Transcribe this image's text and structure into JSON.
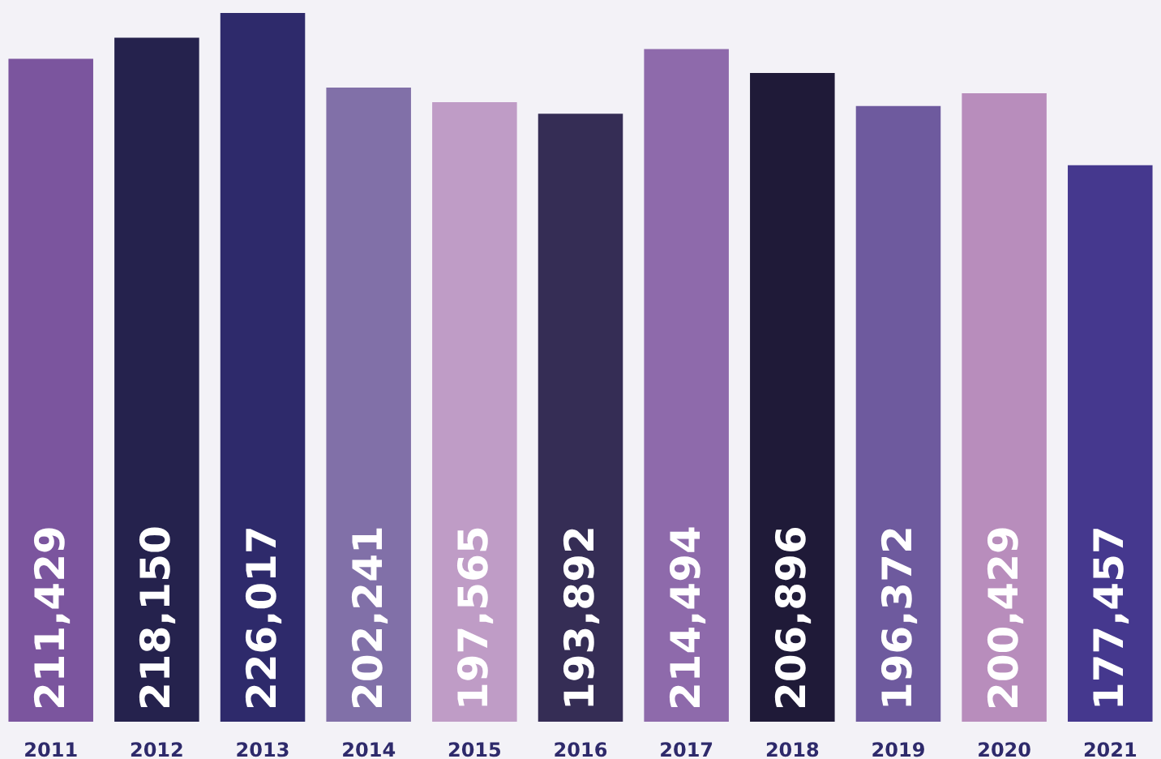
{
  "chart_data": {
    "type": "bar",
    "categories": [
      "2011",
      "2012",
      "2013",
      "2014",
      "2015",
      "2016",
      "2017",
      "2018",
      "2019",
      "2020",
      "2021"
    ],
    "values": [
      211429,
      218150,
      226017,
      202241,
      197565,
      193892,
      214494,
      206896,
      196372,
      200429,
      177457
    ],
    "colors": [
      "#7b559e",
      "#25224d",
      "#2e2a6b",
      "#8170a8",
      "#bf9cc6",
      "#352d55",
      "#8e6aab",
      "#1f1a38",
      "#6e5a9e",
      "#b88dbc",
      "#45388e"
    ],
    "value_labels": [
      "211,429",
      "218,150",
      "226,017",
      "202,241",
      "197,565",
      "193,892",
      "214,494",
      "206,896",
      "196,372",
      "200,429",
      "177,457"
    ],
    "tick_labels": "x"
  }
}
